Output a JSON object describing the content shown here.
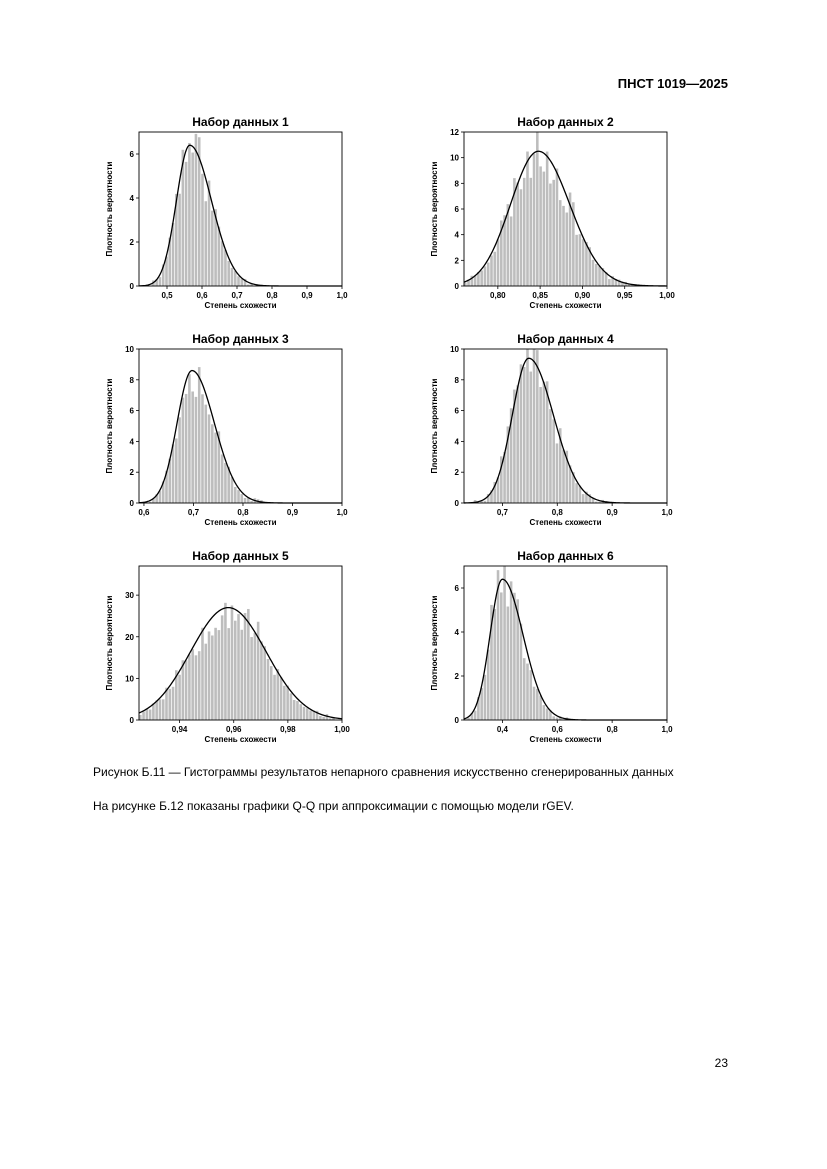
{
  "header": {
    "doc_id": "ПНСТ 1019—2025"
  },
  "figure": {
    "caption": "Рисунок Б.11 — Гистограммы результатов непарного сравнения искусственно сгенерированных данных"
  },
  "paragraph": "На рисунке Б.12 показаны графики Q-Q при аппроксимации с помощью модели rGEV.",
  "page_number": "23",
  "style": {
    "bar_color": "#bdbdbd",
    "curve_color": "#000000"
  },
  "chart_data": [
    {
      "type": "bar",
      "title": "Набор данных 1",
      "xlabel": "Степень схожести",
      "ylabel": "Плотность вероятности",
      "xlim": [
        0.42,
        1.0
      ],
      "ylim": [
        0,
        7.0
      ],
      "xticks": [
        0.5,
        0.6,
        0.7,
        0.8,
        0.9,
        1.0
      ],
      "xtick_labels": [
        "0,5",
        "0,6",
        "0,7",
        "0,8",
        "0,9",
        "1,0"
      ],
      "yticks": [
        0,
        2,
        4,
        6
      ],
      "ytick_labels": [
        "0",
        "2",
        "4",
        "6"
      ],
      "fit": {
        "loc": 0.565,
        "scale_left": 0.038,
        "scale_right": 0.062,
        "peak": 6.4
      },
      "noise_seed": 11
    },
    {
      "type": "bar",
      "title": "Набор данных 2",
      "xlabel": "Степень схожести",
      "ylabel": "Плотность вероятности",
      "xlim": [
        0.76,
        1.0
      ],
      "ylim": [
        0,
        12.0
      ],
      "xticks": [
        0.8,
        0.85,
        0.9,
        0.95,
        1.0
      ],
      "xtick_labels": [
        "0,80",
        "0,85",
        "0,90",
        "0,95",
        "1,00"
      ],
      "yticks": [
        0,
        2,
        4,
        6,
        8,
        10,
        12
      ],
      "ytick_labels": [
        "0",
        "2",
        "4",
        "6",
        "8",
        "10",
        "12"
      ],
      "fit": {
        "loc": 0.848,
        "scale_left": 0.033,
        "scale_right": 0.037,
        "peak": 10.5
      },
      "noise_seed": 23
    },
    {
      "type": "bar",
      "title": "Набор данных 3",
      "xlabel": "Степень схожести",
      "ylabel": "Плотность вероятности",
      "xlim": [
        0.59,
        1.0
      ],
      "ylim": [
        0,
        10.0
      ],
      "xticks": [
        0.6,
        0.7,
        0.8,
        0.9,
        1.0
      ],
      "xtick_labels": [
        "0,6",
        "0,7",
        "0,8",
        "0,9",
        "1,0"
      ],
      "yticks": [
        0,
        2,
        4,
        6,
        8,
        10
      ],
      "ytick_labels": [
        "0",
        "2",
        "4",
        "6",
        "8",
        "10"
      ],
      "fit": {
        "loc": 0.697,
        "scale_left": 0.03,
        "scale_right": 0.045,
        "peak": 8.6
      },
      "noise_seed": 37
    },
    {
      "type": "bar",
      "title": "Набор данных 4",
      "xlabel": "Степень схожести",
      "ylabel": "Плотность вероятности",
      "xlim": [
        0.63,
        1.0
      ],
      "ylim": [
        0,
        10.0
      ],
      "xticks": [
        0.7,
        0.8,
        0.9,
        1.0
      ],
      "xtick_labels": [
        "0,7",
        "0,8",
        "0,9",
        "1,0"
      ],
      "yticks": [
        0,
        2,
        4,
        6,
        8,
        10
      ],
      "ytick_labels": [
        "0",
        "2",
        "4",
        "6",
        "8",
        "10"
      ],
      "fit": {
        "loc": 0.748,
        "scale_left": 0.03,
        "scale_right": 0.045,
        "peak": 9.4
      },
      "noise_seed": 41
    },
    {
      "type": "bar",
      "title": "Набор данных 5",
      "xlabel": "Степень схожести",
      "ylabel": "Плотность вероятности",
      "xlim": [
        0.925,
        1.0
      ],
      "ylim": [
        0,
        37.0
      ],
      "xticks": [
        0.94,
        0.96,
        0.98,
        1.0
      ],
      "xtick_labels": [
        "0,94",
        "0,96",
        "0,98",
        "1,00"
      ],
      "yticks": [
        0,
        10,
        20,
        30
      ],
      "ytick_labels": [
        "0",
        "10",
        "20",
        "30"
      ],
      "fit": {
        "loc": 0.958,
        "scale_left": 0.014,
        "scale_right": 0.014,
        "peak": 27.0
      },
      "noise_seed": 53
    },
    {
      "type": "bar",
      "title": "Набор данных 6",
      "xlabel": "Степень схожести",
      "ylabel": "Плотность вероятности",
      "xlim": [
        0.26,
        1.0
      ],
      "ylim": [
        0,
        7.0
      ],
      "xticks": [
        0.4,
        0.6,
        0.8,
        1.0
      ],
      "xtick_labels": [
        "0,4",
        "0,6",
        "0,8",
        "1,0"
      ],
      "yticks": [
        0,
        2,
        4,
        6
      ],
      "ytick_labels": [
        "0",
        "2",
        "4",
        "6"
      ],
      "fit": {
        "loc": 0.4,
        "scale_left": 0.045,
        "scale_right": 0.075,
        "peak": 6.4
      },
      "noise_seed": 67
    }
  ]
}
